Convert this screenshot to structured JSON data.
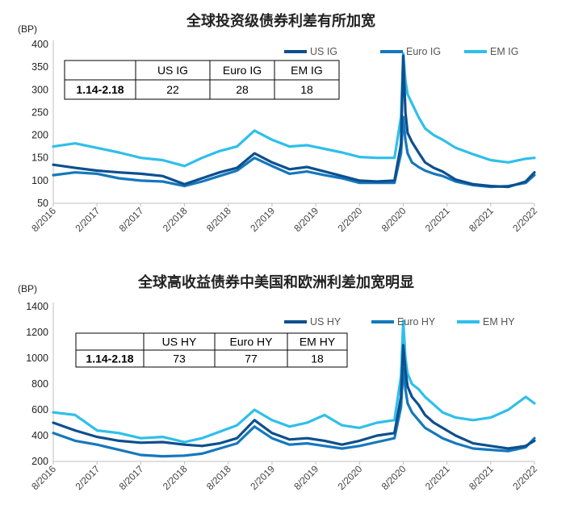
{
  "colors": {
    "us": "#0d4f8e",
    "euro": "#1478bd",
    "em": "#2fbfea"
  },
  "chart_data": [
    {
      "type": "line",
      "title": "全球投资级债券利差有所加宽",
      "unit": "(BP)",
      "x_ticks": [
        "8/2016",
        "2/2017",
        "8/2017",
        "2/2018",
        "8/2018",
        "2/2019",
        "8/2019",
        "2/2020",
        "8/2020",
        "2/2021",
        "8/2021",
        "2/2022"
      ],
      "ylim": [
        50,
        400
      ],
      "y_ticks": [
        "50",
        "100",
        "150",
        "200",
        "250",
        "300",
        "350",
        "400"
      ],
      "legend_position": "top-right",
      "series": [
        {
          "name": "US IG",
          "color_key": "us",
          "x": [
            0,
            0.5,
            1,
            1.5,
            2,
            2.5,
            3,
            3.4,
            3.8,
            4.2,
            4.6,
            5,
            5.4,
            5.8,
            6.2,
            6.6,
            7,
            7.4,
            7.8,
            7.95,
            8.0,
            8.05,
            8.1,
            8.2,
            8.35,
            8.5,
            8.7,
            8.9,
            9.2,
            9.6,
            10,
            10.4,
            10.8,
            11
          ],
          "values": [
            135,
            128,
            122,
            118,
            115,
            110,
            92,
            105,
            118,
            128,
            160,
            140,
            125,
            130,
            120,
            110,
            100,
            98,
            100,
            180,
            375,
            250,
            205,
            185,
            162,
            140,
            128,
            120,
            102,
            92,
            88,
            86,
            98,
            118
          ]
        },
        {
          "name": "Euro IG",
          "color_key": "euro",
          "x": [
            0,
            0.5,
            1,
            1.5,
            2,
            2.5,
            3,
            3.4,
            3.8,
            4.2,
            4.6,
            5,
            5.4,
            5.8,
            6.2,
            6.6,
            7,
            7.4,
            7.8,
            7.95,
            8.0,
            8.05,
            8.1,
            8.2,
            8.35,
            8.5,
            8.7,
            8.9,
            9.2,
            9.6,
            10,
            10.4,
            10.8,
            11
          ],
          "values": [
            112,
            118,
            115,
            105,
            100,
            98,
            88,
            98,
            110,
            122,
            150,
            132,
            115,
            120,
            112,
            105,
            95,
            95,
            95,
            160,
            240,
            190,
            160,
            140,
            130,
            122,
            115,
            110,
            98,
            90,
            86,
            88,
            95,
            112
          ]
        },
        {
          "name": "EM IG",
          "color_key": "em",
          "x": [
            0,
            0.5,
            1,
            1.5,
            2,
            2.5,
            3,
            3.4,
            3.8,
            4.2,
            4.6,
            5,
            5.4,
            5.8,
            6.2,
            6.6,
            7,
            7.4,
            7.8,
            7.95,
            8.0,
            8.05,
            8.1,
            8.2,
            8.35,
            8.5,
            8.7,
            8.9,
            9.2,
            9.6,
            10,
            10.4,
            10.8,
            11
          ],
          "values": [
            175,
            182,
            172,
            162,
            150,
            145,
            132,
            150,
            165,
            175,
            210,
            190,
            175,
            178,
            170,
            162,
            152,
            150,
            150,
            240,
            380,
            320,
            290,
            270,
            240,
            215,
            200,
            190,
            172,
            158,
            145,
            140,
            148,
            150
          ]
        }
      ],
      "table": {
        "headers": [
          "US IG",
          "Euro IG",
          "EM IG"
        ],
        "row_label": "1.14-2.18",
        "values": [
          "22",
          "28",
          "18"
        ]
      }
    },
    {
      "type": "line",
      "title": "全球高收益债券中美国和欧洲利差加宽明显",
      "unit": "(BP)",
      "x_ticks": [
        "8/2016",
        "2/2017",
        "8/2017",
        "2/2018",
        "8/2018",
        "2/2019",
        "8/2019",
        "2/2020",
        "8/2020",
        "2/2021",
        "8/2021",
        "2/2022"
      ],
      "ylim": [
        200,
        1400
      ],
      "y_ticks": [
        "200",
        "400",
        "600",
        "800",
        "1000",
        "1200",
        "1400"
      ],
      "legend_position": "top-right",
      "series": [
        {
          "name": "US HY",
          "color_key": "us",
          "x": [
            0,
            0.5,
            1,
            1.5,
            2,
            2.5,
            3,
            3.4,
            3.8,
            4.2,
            4.6,
            5,
            5.4,
            5.8,
            6.2,
            6.6,
            7,
            7.4,
            7.8,
            7.95,
            8.0,
            8.05,
            8.1,
            8.2,
            8.35,
            8.5,
            8.7,
            8.9,
            9.2,
            9.6,
            10,
            10.4,
            10.8,
            11
          ],
          "values": [
            500,
            440,
            390,
            360,
            345,
            350,
            330,
            320,
            340,
            380,
            520,
            420,
            370,
            380,
            360,
            330,
            360,
            400,
            420,
            700,
            1100,
            900,
            780,
            700,
            640,
            560,
            500,
            460,
            400,
            340,
            320,
            300,
            320,
            360
          ]
        },
        {
          "name": "Euro HY",
          "color_key": "euro",
          "x": [
            0,
            0.5,
            1,
            1.5,
            2,
            2.5,
            3,
            3.4,
            3.8,
            4.2,
            4.6,
            5,
            5.4,
            5.8,
            6.2,
            6.6,
            7,
            7.4,
            7.8,
            7.95,
            8.0,
            8.05,
            8.1,
            8.2,
            8.35,
            8.5,
            8.7,
            8.9,
            9.2,
            9.6,
            10,
            10.4,
            10.8,
            11
          ],
          "values": [
            420,
            360,
            330,
            290,
            250,
            240,
            245,
            260,
            300,
            340,
            470,
            380,
            330,
            340,
            320,
            300,
            320,
            350,
            380,
            620,
            920,
            760,
            650,
            580,
            520,
            460,
            420,
            380,
            340,
            300,
            290,
            280,
            310,
            380
          ]
        },
        {
          "name": "EM HY",
          "color_key": "em",
          "x": [
            0,
            0.5,
            1,
            1.5,
            2,
            2.5,
            3,
            3.4,
            3.8,
            4.2,
            4.6,
            5,
            5.4,
            5.8,
            6.2,
            6.6,
            7,
            7.4,
            7.8,
            7.95,
            8.0,
            8.05,
            8.1,
            8.2,
            8.35,
            8.5,
            8.7,
            8.9,
            9.2,
            9.6,
            10,
            10.4,
            10.8,
            11
          ],
          "values": [
            580,
            560,
            440,
            420,
            380,
            390,
            350,
            380,
            430,
            480,
            600,
            520,
            470,
            500,
            560,
            480,
            460,
            500,
            520,
            860,
            1290,
            1000,
            880,
            800,
            760,
            700,
            640,
            580,
            540,
            520,
            540,
            600,
            700,
            650
          ]
        }
      ],
      "table": {
        "headers": [
          "US HY",
          "Euro HY",
          "EM HY"
        ],
        "row_label": "1.14-2.18",
        "values": [
          "73",
          "77",
          "18"
        ]
      }
    }
  ]
}
